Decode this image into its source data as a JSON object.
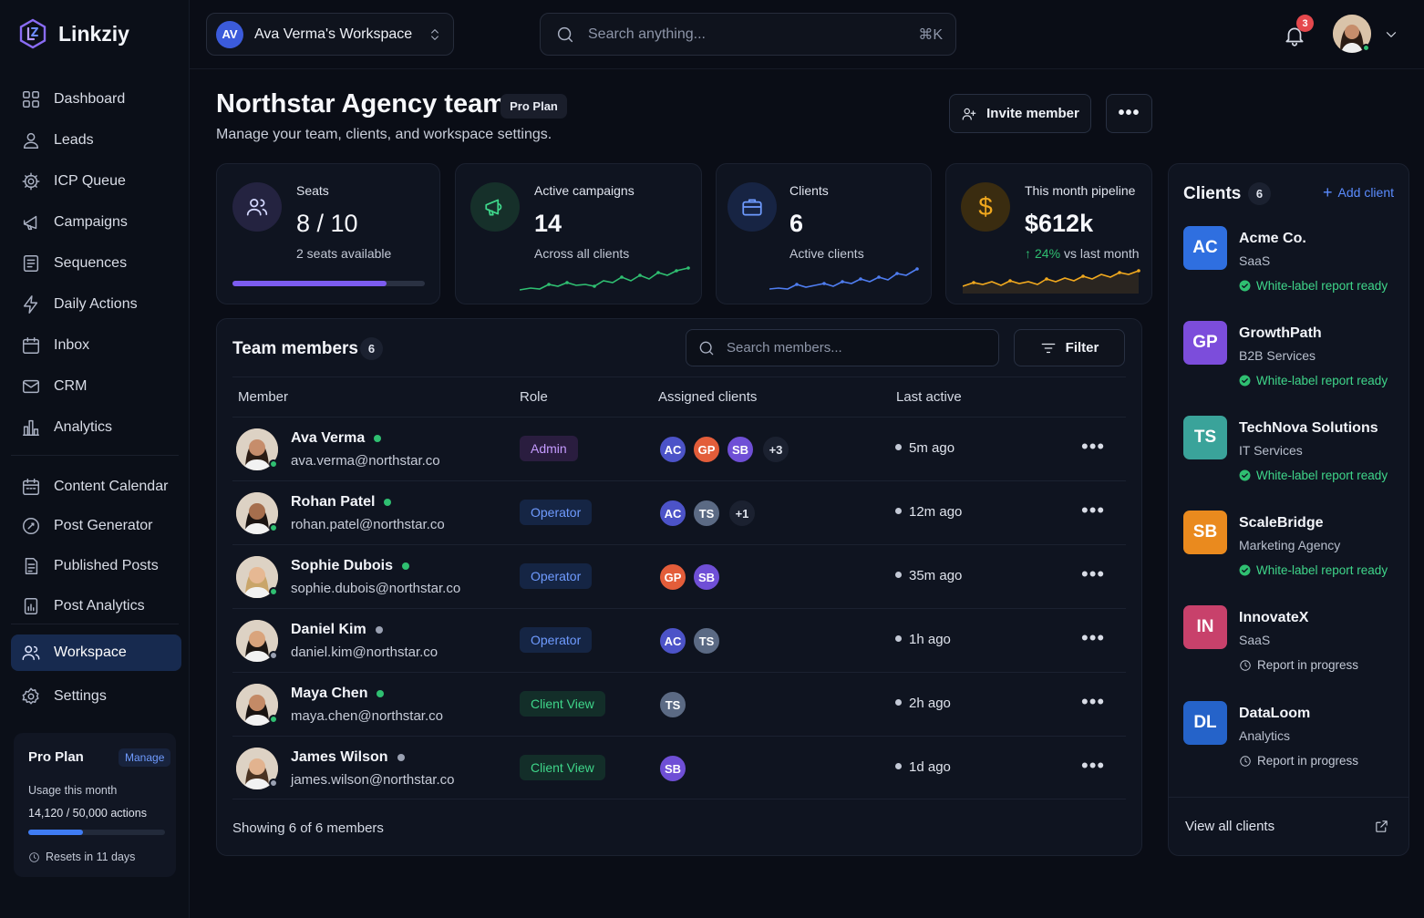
{
  "app": {
    "name": "Linkziy"
  },
  "workspace_selector": {
    "initials": "AV",
    "label": "Ava Verma's Workspace"
  },
  "search": {
    "placeholder": "Search anything...",
    "shortcut": "⌘K"
  },
  "notifications": {
    "count": "3"
  },
  "sidebar": {
    "items": [
      {
        "label": "Dashboard",
        "icon": "dashboard-icon"
      },
      {
        "label": "Leads",
        "icon": "user-icon"
      },
      {
        "label": "ICP Queue",
        "icon": "gear-icon"
      },
      {
        "label": "Campaigns",
        "icon": "campaign-icon"
      },
      {
        "label": "Sequences",
        "icon": "sequence-icon"
      },
      {
        "label": "Daily Actions",
        "icon": "bolt-icon"
      },
      {
        "label": "Inbox",
        "icon": "inbox-icon"
      },
      {
        "label": "CRM",
        "icon": "mail-icon"
      },
      {
        "label": "Analytics",
        "icon": "bar-chart-icon"
      }
    ],
    "items2": [
      {
        "label": "Content Calendar",
        "icon": "calendar-icon"
      },
      {
        "label": "Post Generator",
        "icon": "post-generator-icon"
      },
      {
        "label": "Published Posts",
        "icon": "document-icon"
      },
      {
        "label": "Post Analytics",
        "icon": "chart-doc-icon"
      }
    ],
    "items3": [
      {
        "label": "Workspace",
        "icon": "team-icon",
        "active": true
      },
      {
        "label": "Settings",
        "icon": "settings-icon"
      }
    ],
    "plan": {
      "name": "Pro Plan",
      "manage": "Manage",
      "usage_label": "Usage this month",
      "usage_value": "14,120 / 50,000 actions",
      "usage_fraction": 0.2824,
      "resets": "Resets in 11 days"
    }
  },
  "header": {
    "title": "Northstar Agency team",
    "plan_badge": "Pro Plan",
    "subtitle": "Manage your team, clients, and workspace settings.",
    "invite_button": "Invite member"
  },
  "stats": {
    "seats": {
      "label": "Seats",
      "value": "8 / 10",
      "sub": "2 seats available",
      "fraction": 0.8
    },
    "campaigns": {
      "label": "Active campaigns",
      "value": "14",
      "sub": "Across all clients"
    },
    "clients": {
      "label": "Clients",
      "value": "6",
      "sub": "Active clients"
    },
    "pipeline": {
      "label": "This month pipeline",
      "value": "$612k",
      "change": "24%",
      "change_suffix": "vs last month"
    }
  },
  "team": {
    "title": "Team members",
    "count": "6",
    "search_placeholder": "Search members...",
    "filter_label": "Filter",
    "columns": [
      "Member",
      "Role",
      "Assigned clients",
      "Last active"
    ],
    "members": [
      {
        "name": "Ava Verma",
        "email": "ava.verma@northstar.co",
        "online": true,
        "role": "Admin",
        "clients": [
          "AC",
          "GP",
          "SB"
        ],
        "more": "+3",
        "last_active": "5m ago"
      },
      {
        "name": "Rohan Patel",
        "email": "rohan.patel@northstar.co",
        "online": true,
        "role": "Operator",
        "clients": [
          "AC",
          "TS"
        ],
        "more": "+1",
        "last_active": "12m ago"
      },
      {
        "name": "Sophie Dubois",
        "email": "sophie.dubois@northstar.co",
        "online": true,
        "role": "Operator",
        "clients": [
          "GP",
          "SB"
        ],
        "more": "",
        "last_active": "35m ago"
      },
      {
        "name": "Daniel Kim",
        "email": "daniel.kim@northstar.co",
        "online": false,
        "role": "Operator",
        "clients": [
          "AC",
          "TS"
        ],
        "more": "",
        "last_active": "1h ago"
      },
      {
        "name": "Maya Chen",
        "email": "maya.chen@northstar.co",
        "online": true,
        "role": "Client View",
        "clients": [
          "TS"
        ],
        "more": "",
        "last_active": "2h ago"
      },
      {
        "name": "James Wilson",
        "email": "james.wilson@northstar.co",
        "online": false,
        "role": "Client View",
        "clients": [
          "SB"
        ],
        "more": "",
        "last_active": "1d ago"
      }
    ],
    "footer": "Showing 6 of 6 members"
  },
  "clients_panel": {
    "title": "Clients",
    "count": "6",
    "add": "Add client",
    "items": [
      {
        "initials": "AC",
        "name": "Acme Co.",
        "type": "SaaS",
        "status": "White-label report ready",
        "ready": true,
        "color": "#2f6fe0"
      },
      {
        "initials": "GP",
        "name": "GrowthPath",
        "type": "B2B Services",
        "status": "White-label report ready",
        "ready": true,
        "color": "#7c4ddb"
      },
      {
        "initials": "TS",
        "name": "TechNova Solutions",
        "type": "IT Services",
        "status": "White-label report ready",
        "ready": true,
        "color": "#3aa39a"
      },
      {
        "initials": "SB",
        "name": "ScaleBridge",
        "type": "Marketing Agency",
        "status": "White-label report ready",
        "ready": true,
        "color": "#ea8a1e"
      },
      {
        "initials": "IN",
        "name": "InnovateX",
        "type": "SaaS",
        "status": "Report in progress",
        "ready": false,
        "color": "#c8416b"
      },
      {
        "initials": "DL",
        "name": "DataLoom",
        "type": "Analytics",
        "status": "Report in progress",
        "ready": false,
        "color": "#2563c9"
      }
    ],
    "view_all": "View all clients"
  },
  "colors": {
    "accent": "#7c5cf0",
    "online": "#2fbf71",
    "campaign_line": "#2fbf71",
    "clients_line": "#4f7df0",
    "pipeline_line": "#f0a81e",
    "chip_AC": "#4c53c8",
    "chip_GP": "#e35d3a",
    "chip_SB": "#6f4fd6",
    "chip_TS": "#5b6a84"
  }
}
